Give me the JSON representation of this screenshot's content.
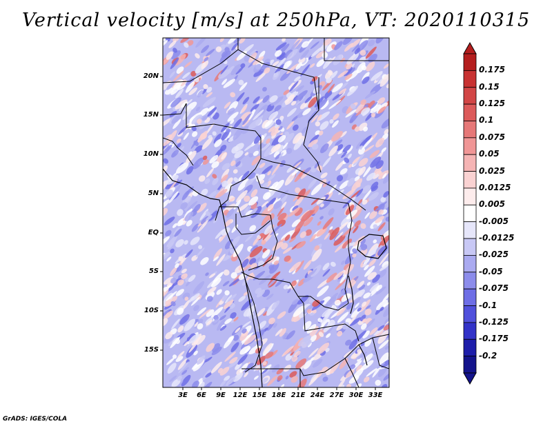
{
  "title": "Vertical velocity [m/s] at 250hPa, VT: 2020110315",
  "credit": "GrADS: IGES/COLA",
  "map": {
    "lat_labels": [
      "20N",
      "15N",
      "10N",
      "5N",
      "EQ",
      "5S",
      "10S",
      "15S"
    ],
    "lon_labels": [
      "3E",
      "6E",
      "9E",
      "12E",
      "15E",
      "18E",
      "21E",
      "24E",
      "27E",
      "30E",
      "33E"
    ]
  },
  "colorbar": {
    "labels": [
      "0.175",
      "0.15",
      "0.125",
      "0.1",
      "0.075",
      "0.05",
      "0.025",
      "0.0125",
      "0.005",
      "-0.005",
      "-0.0125",
      "-0.025",
      "-0.05",
      "-0.075",
      "-0.1",
      "-0.125",
      "-0.175",
      "-0.2"
    ],
    "colors": [
      "#b41e1e",
      "#c83232",
      "#d24646",
      "#dc5a5a",
      "#e67878",
      "#f09696",
      "#f5b4b4",
      "#fad2d2",
      "#fdecec",
      "#ffffff",
      "#e6e6fa",
      "#c8c8f5",
      "#aaaaf0",
      "#8c8ceb",
      "#6e6ee6",
      "#5050dc",
      "#3232c8",
      "#1e1eaa",
      "#14148c"
    ]
  }
}
